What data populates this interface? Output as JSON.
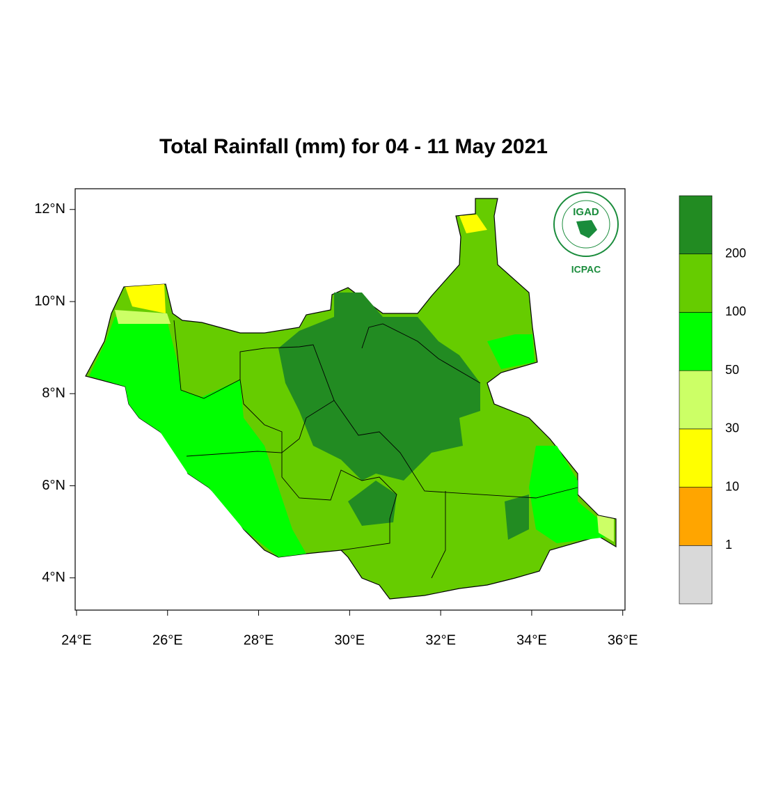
{
  "chart_data": {
    "type": "map",
    "title": "Total Rainfall (mm) for 04 - 11 May 2021",
    "xlim": [
      23.97,
      36.05
    ],
    "ylim": [
      3.3,
      12.45
    ],
    "xticks": [
      {
        "value": 24,
        "label": "24°E"
      },
      {
        "value": 26,
        "label": "26°E"
      },
      {
        "value": 28,
        "label": "28°E"
      },
      {
        "value": 30,
        "label": "30°E"
      },
      {
        "value": 32,
        "label": "32°E"
      },
      {
        "value": 34,
        "label": "34°E"
      },
      {
        "value": 36,
        "label": "36°E"
      }
    ],
    "yticks": [
      {
        "value": 4,
        "label": "4°N"
      },
      {
        "value": 6,
        "label": "6°N"
      },
      {
        "value": 8,
        "label": "8°N"
      },
      {
        "value": 10,
        "label": "10°N"
      },
      {
        "value": 12,
        "label": "12°N"
      }
    ],
    "colorbar": {
      "levels": [
        1,
        10,
        30,
        50,
        100,
        200
      ],
      "colors": [
        "#d9d9d9",
        "#ffa500",
        "#ffff00",
        "#ccff66",
        "#00ff00",
        "#66cc00",
        "#228b22"
      ]
    },
    "logo": {
      "name": "IGAD",
      "caption": "ICPAC"
    }
  }
}
